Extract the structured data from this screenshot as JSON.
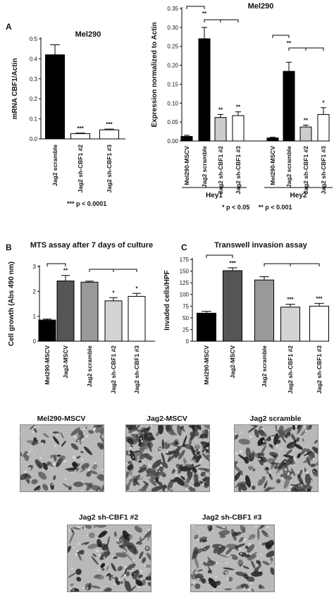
{
  "panel_letters": {
    "a": "A",
    "b": "B",
    "c": "C"
  },
  "panel_a_notes": {
    "significance": "*** p < 0.0001"
  },
  "panel_a2_notes": {
    "significance": "* p < 0.05     ** p < 0.001",
    "groups": [
      "Hey1",
      "Hey2"
    ]
  },
  "chart_data": [
    {
      "id": "a1",
      "type": "bar",
      "title": "Mel290",
      "ylabel": "mRNA CBF1/Actin",
      "xlabel": "",
      "categories": [
        "Jag2 scramble",
        "Jag2 sh-CBF1 #2",
        "Jag2 sh-CBF1 #3"
      ],
      "values": [
        0.42,
        0.026,
        0.045
      ],
      "errors": [
        0.05,
        0.003,
        0.004
      ],
      "colors": [
        "#000000",
        "#ffffff",
        "#ffffff"
      ],
      "stars": [
        "",
        "***",
        "***"
      ],
      "yticks": [
        0.0,
        0.1,
        0.2,
        0.3,
        0.4,
        0.5
      ],
      "ytick_labels": [
        "0.0",
        "0.1",
        "0.2",
        "0.3",
        "0.4",
        "0.5"
      ],
      "ylim": [
        0,
        0.5
      ],
      "grid": false
    },
    {
      "id": "a2",
      "type": "bar",
      "title": "Mel290",
      "ylabel": "Expression normalized to Actin",
      "xlabel": "",
      "categories": [
        "Mel290-MSCV",
        "Jag2 scramble",
        "Jag2 sh-CBF1 #2",
        "Jag2 sh-CBF1 #3",
        "Mel290-MSCV",
        "Jag2 scramble",
        "Jag2 sh-CBF1 #2",
        "Jag2 sh-CBF1 #3"
      ],
      "groups": [
        "Hey1",
        "Hey1",
        "Hey1",
        "Hey1",
        "Hey2",
        "Hey2",
        "Hey2",
        "Hey2"
      ],
      "values": [
        0.012,
        0.27,
        0.062,
        0.067,
        0.008,
        0.184,
        0.037,
        0.07
      ],
      "errors": [
        0.003,
        0.03,
        0.008,
        0.01,
        0.002,
        0.024,
        0.005,
        0.018
      ],
      "colors": [
        "#000000",
        "#000000",
        "#cccccc",
        "#ffffff",
        "#000000",
        "#000000",
        "#cccccc",
        "#ffffff"
      ],
      "stars": [
        "",
        "",
        "**",
        "**",
        "",
        "",
        "**",
        "*"
      ],
      "bracket_stars": [
        "**",
        "**"
      ],
      "yticks": [
        0.0,
        0.05,
        0.1,
        0.15,
        0.2,
        0.25,
        0.3,
        0.35
      ],
      "ytick_labels": [
        "0.00",
        "0.05",
        "0.10",
        "0.15",
        "0.20",
        "0.25",
        "0.30",
        "0.35"
      ],
      "ylim": [
        0,
        0.35
      ],
      "grid": false
    },
    {
      "id": "b",
      "type": "bar",
      "title": "MTS assay after 7 days of culture",
      "ylabel": "Cell growth (Abs 490 nm)",
      "xlabel": "",
      "categories": [
        "Mel290-MSCV",
        "Jag2-MSCV",
        "Jag2 scramble",
        "Jag2 sh-CBF1 #2",
        "Jag2 sh-CBF1 #3"
      ],
      "values": [
        0.85,
        2.42,
        2.37,
        1.62,
        1.8
      ],
      "errors": [
        0.04,
        0.22,
        0.04,
        0.13,
        0.12
      ],
      "colors": [
        "#000000",
        "#555555",
        "#999999",
        "#d3d3d3",
        "#ffffff"
      ],
      "stars": [
        "",
        "**",
        "",
        "*",
        "*"
      ],
      "yticks": [
        0,
        1,
        2,
        3
      ],
      "ytick_labels": [
        "0",
        "1",
        "2",
        "3"
      ],
      "ylim": [
        0,
        3
      ],
      "grid": false
    },
    {
      "id": "c",
      "type": "bar",
      "title": "Transwell invasion assay",
      "ylabel": "Invaded cells/HPF",
      "xlabel": "",
      "categories": [
        "Mel290-MSCV",
        "Jag2-MSCV",
        "Jag2 scramble",
        "Jag2 sh-CBF1 #2",
        "Jag2 sh-CBF1 #3"
      ],
      "values": [
        60,
        151,
        131,
        73,
        75
      ],
      "errors": [
        4,
        6,
        7,
        6,
        6
      ],
      "colors": [
        "#000000",
        "#555555",
        "#999999",
        "#d3d3d3",
        "#ffffff"
      ],
      "stars": [
        "",
        "***",
        "",
        "***",
        "***"
      ],
      "yticks": [
        0,
        25,
        50,
        75,
        100,
        125,
        150,
        175
      ],
      "ytick_labels": [
        "0",
        "25",
        "50",
        "75",
        "100",
        "125",
        "150",
        "175"
      ],
      "ylim": [
        0,
        175
      ],
      "grid": false
    }
  ],
  "micrographs": {
    "labels": [
      "Mel290-MSCV",
      "Jag2-MSCV",
      "Jag2 scramble",
      "Jag2 sh-CBF1 #2",
      "Jag2 sh-CBF1 #3"
    ],
    "densities": [
      0.25,
      0.85,
      0.55,
      0.35,
      0.3
    ]
  }
}
